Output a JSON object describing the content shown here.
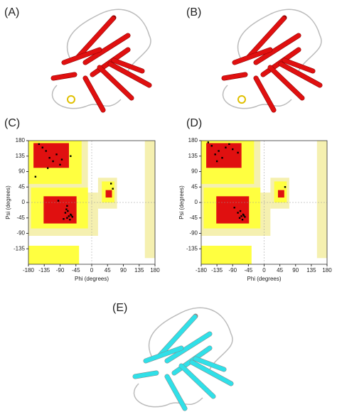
{
  "panel_labels": [
    "(A)",
    "(B)",
    "(C)",
    "(D)",
    "(E)"
  ],
  "chart_data": [
    {
      "type": "scatter",
      "x_label": "Phi (degrees)",
      "y_label": "Psi (degrees)",
      "xlim": [
        -180,
        180
      ],
      "ylim": [
        -180,
        180
      ],
      "xticks": [
        -180,
        -135,
        -90,
        -45,
        0,
        45,
        90,
        135,
        180
      ],
      "yticks": [
        -135,
        -90,
        -45,
        0,
        45,
        90,
        135,
        180
      ],
      "color": "#000000",
      "x": [
        -65,
        -60,
        -70,
        -75,
        -55,
        -62,
        -68,
        -58,
        -72,
        -80,
        -120,
        -130,
        -110,
        -140,
        -100,
        -90,
        -150,
        -125,
        -60,
        -85,
        60,
        55,
        -95,
        -160,
        -70
      ],
      "y": [
        -40,
        -35,
        -45,
        -30,
        -42,
        -50,
        -25,
        -38,
        -20,
        -48,
        130,
        150,
        120,
        160,
        140,
        110,
        170,
        100,
        135,
        125,
        40,
        55,
        5,
        75,
        -10
      ]
    },
    {
      "type": "scatter",
      "x_label": "Phi (degrees)",
      "y_label": "Psi (degrees)",
      "xlim": [
        -180,
        180
      ],
      "ylim": [
        -180,
        180
      ],
      "xticks": [
        -180,
        -135,
        -90,
        -45,
        0,
        45,
        90,
        135,
        180
      ],
      "yticks": [
        -135,
        -90,
        -45,
        0,
        45,
        90,
        135,
        180
      ],
      "color": "#000000",
      "x": [
        -65,
        -60,
        -70,
        -55,
        -75,
        -62,
        -58,
        -68,
        -120,
        -130,
        -110,
        -140,
        -100,
        -150,
        -90,
        -135,
        -75,
        60,
        -85,
        -160
      ],
      "y": [
        -40,
        -35,
        -45,
        -42,
        -30,
        -50,
        -38,
        -25,
        130,
        150,
        160,
        140,
        170,
        165,
        155,
        120,
        145,
        45,
        -15,
        175
      ]
    }
  ]
}
